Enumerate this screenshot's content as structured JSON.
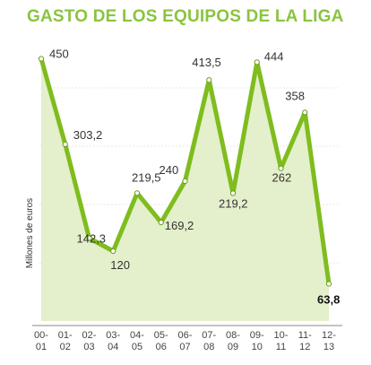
{
  "colors": {
    "title": "#8ac43f",
    "line": "#7fbd1e",
    "area": "#e4efcb",
    "grid": "#c9d9b0",
    "axis": "#8a8a8a"
  },
  "chart_data": {
    "type": "area",
    "title": "GASTO DE LOS EQUIPOS DE LA LIGA",
    "ylabel": "Millones de euros",
    "xlabel": "",
    "ylim": [
      0,
      500
    ],
    "grid": true,
    "categories": [
      [
        "00-",
        "01"
      ],
      [
        "01-",
        "02"
      ],
      [
        "02-",
        "03"
      ],
      [
        "03-",
        "04"
      ],
      [
        "04-",
        "05"
      ],
      [
        "05-",
        "06"
      ],
      [
        "06-",
        "07"
      ],
      [
        "07-",
        "08"
      ],
      [
        "08-",
        "09"
      ],
      [
        "09-",
        "10"
      ],
      [
        "10-",
        "11"
      ],
      [
        "11-",
        "12"
      ],
      [
        "12-",
        "13"
      ]
    ],
    "values": [
      450,
      303.2,
      142.3,
      120,
      219.5,
      169.2,
      240,
      413.5,
      219.2,
      444,
      262,
      358,
      63.8
    ],
    "data_labels": [
      "450",
      "303,2",
      "142,3",
      "120",
      "219,5",
      "169,2",
      "240",
      "413,5",
      "219,2",
      "444",
      "262",
      "358",
      "63,8"
    ]
  }
}
